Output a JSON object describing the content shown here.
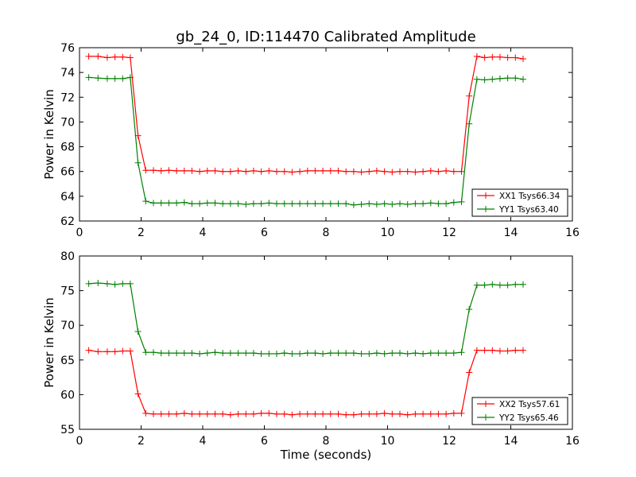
{
  "figure": {
    "title": "gb_24_0, ID:114470 Calibrated Amplitude"
  },
  "chart_data": [
    {
      "type": "line",
      "title": "gb_24_0, ID:114470 Calibrated Amplitude",
      "xlabel": "",
      "ylabel": "Power in Kelvin",
      "xlim": [
        0,
        16
      ],
      "ylim": [
        62,
        76
      ],
      "xticks": [
        0,
        2,
        4,
        6,
        8,
        10,
        12,
        14,
        16
      ],
      "yticks": [
        62,
        64,
        66,
        68,
        70,
        72,
        74,
        76
      ],
      "legend_position": "lower-right",
      "grid": false,
      "x": [
        0.3,
        0.6,
        0.9,
        1.15,
        1.4,
        1.65,
        1.9,
        2.15,
        2.4,
        2.65,
        2.9,
        3.15,
        3.4,
        3.65,
        3.9,
        4.15,
        4.4,
        4.65,
        4.9,
        5.15,
        5.4,
        5.65,
        5.9,
        6.15,
        6.4,
        6.65,
        6.9,
        7.15,
        7.4,
        7.65,
        7.9,
        8.15,
        8.4,
        8.65,
        8.9,
        9.15,
        9.4,
        9.65,
        9.9,
        10.15,
        10.4,
        10.65,
        10.9,
        11.15,
        11.4,
        11.65,
        11.9,
        12.15,
        12.4,
        12.65,
        12.9,
        13.15,
        13.4,
        13.65,
        13.9,
        14.15,
        14.4
      ],
      "series": [
        {
          "name": "XX1 Tsys66.34",
          "color": "#ff0000",
          "values": [
            75.3,
            75.3,
            75.2,
            75.25,
            75.25,
            75.2,
            68.9,
            66.1,
            66.1,
            66.05,
            66.1,
            66.05,
            66.05,
            66.05,
            66.0,
            66.05,
            66.05,
            66.0,
            66.0,
            66.05,
            66.0,
            66.05,
            66.0,
            66.05,
            66.0,
            66.0,
            65.95,
            66.0,
            66.05,
            66.05,
            66.05,
            66.05,
            66.05,
            66.0,
            66.0,
            65.95,
            66.0,
            66.05,
            66.0,
            65.95,
            66.0,
            66.0,
            65.95,
            66.0,
            66.05,
            66.0,
            66.05,
            66.0,
            66.0,
            72.1,
            75.3,
            75.2,
            75.25,
            75.25,
            75.2,
            75.2,
            75.1
          ]
        },
        {
          "name": "YY1 Tsys63.40",
          "color": "#008000",
          "values": [
            73.6,
            73.55,
            73.5,
            73.5,
            73.5,
            73.6,
            66.7,
            63.6,
            63.45,
            63.45,
            63.45,
            63.45,
            63.5,
            63.4,
            63.4,
            63.45,
            63.45,
            63.4,
            63.4,
            63.4,
            63.35,
            63.4,
            63.4,
            63.45,
            63.4,
            63.4,
            63.4,
            63.4,
            63.4,
            63.4,
            63.4,
            63.4,
            63.4,
            63.4,
            63.3,
            63.35,
            63.4,
            63.35,
            63.4,
            63.35,
            63.4,
            63.35,
            63.4,
            63.4,
            63.45,
            63.4,
            63.4,
            63.5,
            63.55,
            69.85,
            73.45,
            73.4,
            73.45,
            73.5,
            73.55,
            73.55,
            73.45
          ]
        }
      ]
    },
    {
      "type": "line",
      "title": "",
      "xlabel": "Time (seconds)",
      "ylabel": "Power in Kelvin",
      "xlim": [
        0,
        16
      ],
      "ylim": [
        55,
        80
      ],
      "xticks": [
        0,
        2,
        4,
        6,
        8,
        10,
        12,
        14,
        16
      ],
      "yticks": [
        55,
        60,
        65,
        70,
        75,
        80
      ],
      "legend_position": "lower-right",
      "grid": false,
      "x": [
        0.3,
        0.6,
        0.9,
        1.15,
        1.4,
        1.65,
        1.9,
        2.15,
        2.4,
        2.65,
        2.9,
        3.15,
        3.4,
        3.65,
        3.9,
        4.15,
        4.4,
        4.65,
        4.9,
        5.15,
        5.4,
        5.65,
        5.9,
        6.15,
        6.4,
        6.65,
        6.9,
        7.15,
        7.4,
        7.65,
        7.9,
        8.15,
        8.4,
        8.65,
        8.9,
        9.15,
        9.4,
        9.65,
        9.9,
        10.15,
        10.4,
        10.65,
        10.9,
        11.15,
        11.4,
        11.65,
        11.9,
        12.15,
        12.4,
        12.65,
        12.9,
        13.15,
        13.4,
        13.65,
        13.9,
        14.15,
        14.4
      ],
      "series": [
        {
          "name": "XX2 Tsys57.61",
          "color": "#ff0000",
          "values": [
            66.4,
            66.2,
            66.2,
            66.2,
            66.3,
            66.3,
            60.1,
            57.3,
            57.2,
            57.2,
            57.2,
            57.2,
            57.3,
            57.2,
            57.2,
            57.2,
            57.2,
            57.2,
            57.1,
            57.2,
            57.2,
            57.2,
            57.3,
            57.3,
            57.2,
            57.2,
            57.1,
            57.2,
            57.2,
            57.2,
            57.2,
            57.2,
            57.2,
            57.1,
            57.1,
            57.2,
            57.2,
            57.2,
            57.3,
            57.2,
            57.2,
            57.1,
            57.2,
            57.2,
            57.2,
            57.2,
            57.2,
            57.3,
            57.3,
            63.2,
            66.4,
            66.4,
            66.4,
            66.3,
            66.3,
            66.4,
            66.4
          ]
        },
        {
          "name": "YY2 Tsys65.46",
          "color": "#008000",
          "values": [
            76.0,
            76.1,
            76.0,
            75.9,
            76.0,
            76.0,
            69.1,
            66.1,
            66.1,
            66.0,
            66.0,
            66.0,
            66.0,
            66.0,
            65.9,
            66.0,
            66.1,
            66.0,
            66.0,
            66.0,
            66.0,
            66.0,
            65.9,
            65.9,
            65.9,
            66.0,
            65.9,
            65.9,
            66.0,
            66.0,
            65.9,
            66.0,
            66.0,
            66.0,
            66.0,
            65.9,
            65.9,
            66.0,
            65.9,
            66.0,
            66.0,
            65.9,
            66.0,
            65.9,
            66.0,
            66.0,
            66.0,
            66.0,
            66.1,
            72.3,
            75.8,
            75.8,
            75.9,
            75.8,
            75.8,
            75.9,
            75.9
          ]
        }
      ]
    }
  ]
}
